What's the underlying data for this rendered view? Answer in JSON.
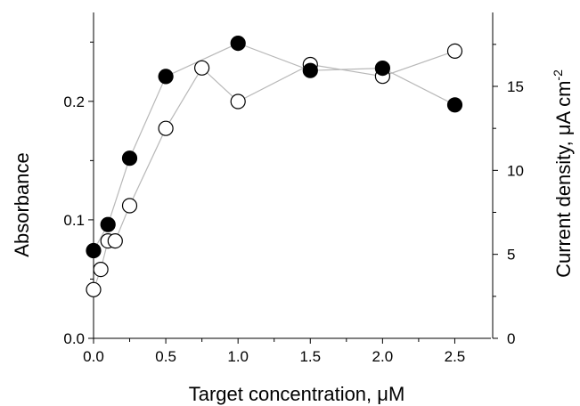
{
  "chart_data": {
    "type": "scatter",
    "title": "",
    "xlabel": "Target concentration, μM",
    "ylabel_left": "Absorbance",
    "ylabel_right_text": "Current density, μA cm",
    "ylabel_right_superscript": "-2",
    "xlim": [
      0,
      2.75
    ],
    "ylim_left": [
      0,
      0.275
    ],
    "ylim_right": [
      0,
      19.4
    ],
    "x_ticks": [
      "0.0",
      "0.5",
      "1.0",
      "1.5",
      "2.0",
      "2.5"
    ],
    "y_left_ticks": [
      "0.0",
      "0.1",
      "0.2"
    ],
    "y_right_ticks": [
      "0",
      "5",
      "10",
      "15"
    ],
    "grid": false,
    "legend": "none",
    "series": [
      {
        "axis": "left",
        "marker": "filled-circle",
        "x": [
          0.0,
          0.1,
          0.25,
          0.5,
          1.0,
          1.5,
          2.0,
          2.5
        ],
        "values": [
          0.074,
          0.096,
          0.152,
          0.221,
          0.249,
          0.226,
          0.228,
          0.197
        ]
      },
      {
        "axis": "right",
        "marker": "open-circle",
        "x": [
          0.0,
          0.05,
          0.1,
          0.15,
          0.25,
          0.5,
          0.75,
          1.0,
          1.5,
          2.0,
          2.5
        ],
        "values": [
          2.9,
          4.1,
          5.8,
          5.8,
          7.9,
          12.5,
          16.1,
          14.1,
          16.3,
          15.6,
          17.1
        ]
      }
    ],
    "colors": {
      "filled": "#000000",
      "open_fill": "#ffffff",
      "line": "#b8b8b8"
    }
  }
}
